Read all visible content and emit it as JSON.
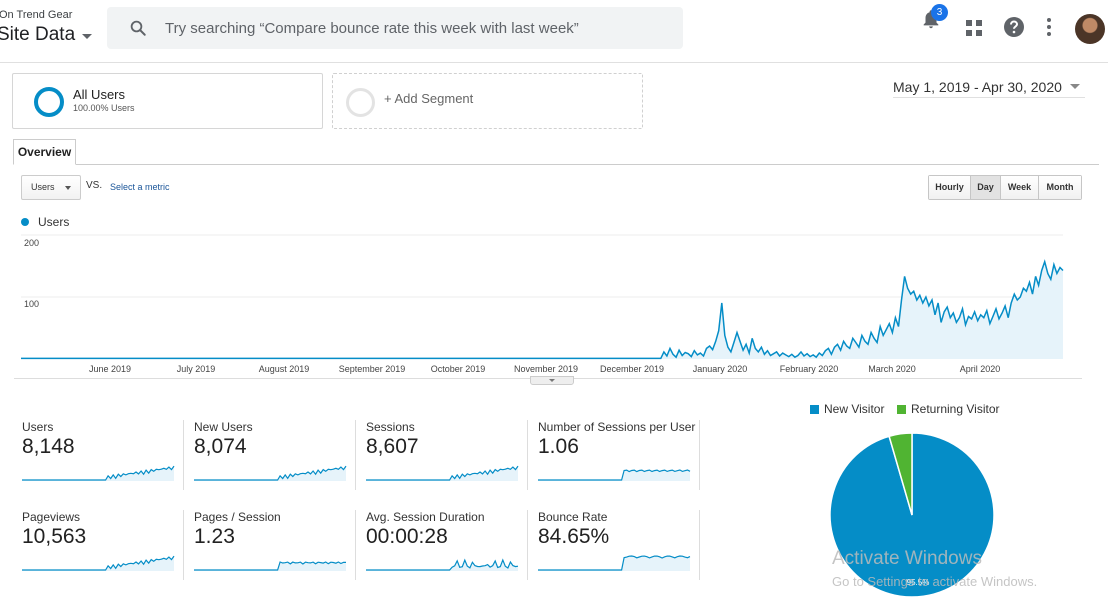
{
  "header": {
    "account": "On Trend Gear",
    "property": "Site Data",
    "search_placeholder": "Try searching “Compare bounce rate this week with last week”",
    "notification_count": "3"
  },
  "segments": {
    "all_users": {
      "title": "All Users",
      "subtitle": "100.00% Users"
    },
    "add_segment": "+ Add Segment"
  },
  "date_range": "May 1, 2019 - Apr 30, 2020",
  "tabs": {
    "overview": "Overview"
  },
  "controls": {
    "metric": "Users",
    "vs": "VS.",
    "select_metric": "Select a metric",
    "granularity": [
      "Hourly",
      "Day",
      "Week",
      "Month"
    ],
    "active_granularity": "Day"
  },
  "chart_data": {
    "type": "area",
    "series_name": "Users",
    "color": "#058dc7",
    "y_ticks": [
      "100",
      "200"
    ],
    "ylim": [
      0,
      200
    ],
    "x_labels": [
      "June 2019",
      "July 2019",
      "August 2019",
      "September 2019",
      "October 2019",
      "November 2019",
      "December 2019",
      "January 2020",
      "February 2020",
      "March 2020",
      "April 2020"
    ],
    "values": [
      1,
      1,
      1,
      1,
      1,
      1,
      1,
      1,
      1,
      1,
      1,
      1,
      1,
      1,
      1,
      1,
      1,
      1,
      1,
      1,
      1,
      1,
      1,
      1,
      1,
      1,
      1,
      1,
      1,
      1,
      1,
      1,
      1,
      1,
      1,
      1,
      1,
      1,
      1,
      1,
      1,
      1,
      1,
      1,
      1,
      1,
      1,
      1,
      1,
      1,
      1,
      1,
      1,
      1,
      1,
      1,
      1,
      1,
      1,
      1,
      1,
      1,
      1,
      1,
      1,
      1,
      1,
      1,
      1,
      1,
      1,
      1,
      1,
      1,
      1,
      1,
      1,
      1,
      1,
      1,
      1,
      1,
      1,
      1,
      1,
      1,
      1,
      1,
      1,
      1,
      1,
      1,
      1,
      1,
      1,
      1,
      1,
      1,
      1,
      1,
      1,
      1,
      1,
      1,
      1,
      1,
      1,
      1,
      1,
      1,
      1,
      1,
      1,
      1,
      1,
      1,
      1,
      1,
      1,
      1,
      1,
      1,
      1,
      1,
      1,
      1,
      1,
      1,
      1,
      1,
      1,
      1,
      1,
      1,
      1,
      1,
      1,
      1,
      1,
      1,
      1,
      1,
      1,
      1,
      1,
      1,
      1,
      1,
      1,
      1,
      1,
      1,
      1,
      1,
      1,
      1,
      1,
      1,
      1,
      1,
      1,
      1,
      1,
      1,
      1,
      1,
      1,
      1,
      1,
      1,
      1,
      1,
      1,
      1,
      1,
      1,
      1,
      1,
      1,
      1,
      1,
      1,
      1,
      1,
      1,
      1,
      1,
      1,
      1,
      1,
      1,
      1,
      1,
      1,
      1,
      1,
      1,
      1,
      1,
      1,
      1,
      1,
      1,
      1,
      1,
      1,
      1,
      1,
      1,
      1,
      1,
      12,
      5,
      18,
      8,
      3,
      15,
      6,
      11,
      9,
      4,
      14,
      7,
      10,
      5,
      18,
      22,
      16,
      30,
      48,
      95,
      40,
      20,
      12,
      28,
      45,
      30,
      15,
      25,
      10,
      35,
      18,
      12,
      20,
      8,
      14,
      6,
      9,
      12,
      5,
      10,
      7,
      4,
      8,
      3,
      6,
      12,
      5,
      9,
      4,
      7,
      3,
      10,
      6,
      14,
      18,
      8,
      20,
      25,
      15,
      30,
      22,
      18,
      35,
      28,
      20,
      40,
      30,
      25,
      45,
      35,
      28,
      55,
      40,
      50,
      60,
      45,
      70,
      55,
      100,
      140,
      120,
      110,
      115,
      100,
      108,
      95,
      105,
      90,
      100,
      75,
      95,
      62,
      80,
      88,
      70,
      78,
      62,
      70,
      85,
      58,
      72,
      68,
      80,
      65,
      75,
      70,
      82,
      60,
      72,
      85,
      68,
      78,
      90,
      70,
      95,
      110,
      100,
      105,
      120,
      115,
      130,
      110,
      140,
      125,
      150,
      165,
      145,
      135,
      160,
      145,
      155,
      150
    ],
    "_note_values_are_estimated_daily_users": ""
  },
  "scorecards": [
    {
      "label": "Users",
      "value": "8,148"
    },
    {
      "label": "New Users",
      "value": "8,074"
    },
    {
      "label": "Sessions",
      "value": "8,607"
    },
    {
      "label": "Number of Sessions per User",
      "value": "1.06"
    },
    {
      "label": "Pageviews",
      "value": "10,563"
    },
    {
      "label": "Pages / Session",
      "value": "1.23"
    },
    {
      "label": "Avg. Session Duration",
      "value": "00:00:28"
    },
    {
      "label": "Bounce Rate",
      "value": "84.65%"
    }
  ],
  "pie": {
    "legend": [
      {
        "name": "New Visitor",
        "color": "#058dc7",
        "share": 95.5
      },
      {
        "name": "Returning Visitor",
        "color": "#50b432",
        "share": 4.5
      }
    ],
    "label": "95.5%"
  },
  "watermark": {
    "title": "Activate Windows",
    "subtitle": "Go to Settings to activate Windows."
  }
}
